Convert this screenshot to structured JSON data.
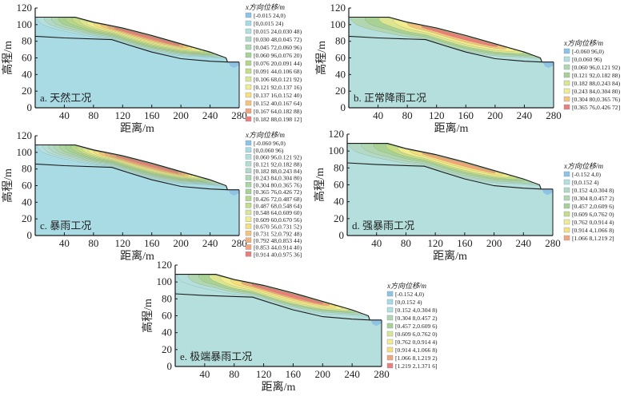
{
  "chart_data": [
    {
      "type": "contour",
      "id": "a",
      "panel_label": "a. 天然工况",
      "xlabel": "距离/m",
      "ylabel": "高程/m",
      "xlim": [
        0,
        280
      ],
      "ylim": [
        0,
        120
      ],
      "xticks": [
        40,
        80,
        120,
        160,
        200,
        240,
        280
      ],
      "yticks": [
        0,
        20,
        40,
        60,
        80,
        100,
        120
      ],
      "legend": {
        "title": "x方向位移/m",
        "entries": [
          {
            "label": "[-0.015 24,0)",
            "color": "#8ec3e3"
          },
          {
            "label": "[0,0.015 24)",
            "color": "#a9dbe5"
          },
          {
            "label": "[0.015 24,0.030 48)",
            "color": "#b4dfdc"
          },
          {
            "label": "[0.030 48,0.045 72)",
            "color": "#b3d9c4"
          },
          {
            "label": "[0.045 72,0.060 96)",
            "color": "#b2d6b0"
          },
          {
            "label": "[0.060 96,0.076 20)",
            "color": "#a9d193"
          },
          {
            "label": "[0.076 20,0.091 44)",
            "color": "#b7d68a"
          },
          {
            "label": "[0.091 44,0.106 68)",
            "color": "#c8dc86"
          },
          {
            "label": "[0.106 68,0.121 92)",
            "color": "#dde590"
          },
          {
            "label": "[0.121 92,0.137 16)",
            "color": "#f2ec8e"
          },
          {
            "label": "[0.137 16,0.152 40)",
            "color": "#f8df7c"
          },
          {
            "label": "[0.152 40,0.167 64)",
            "color": "#f7c27a"
          },
          {
            "label": "[0.167 64,0.182 88)",
            "color": "#f3a47a"
          },
          {
            "label": "[0.182 88,0.198 12]",
            "color": "#ec7e7a"
          }
        ]
      }
    },
    {
      "type": "contour",
      "id": "b",
      "panel_label": "b. 正常降雨工况",
      "xlabel": "距离/m",
      "ylabel": "高程/m",
      "xlim": [
        0,
        280
      ],
      "ylim": [
        0,
        120
      ],
      "xticks": [
        40,
        80,
        120,
        160,
        200,
        240,
        280
      ],
      "yticks": [
        0,
        20,
        40,
        60,
        80,
        100,
        120
      ],
      "legend": {
        "title": "x方向位移/m",
        "entries": [
          {
            "label": "[-0.060 96,0)",
            "color": "#8ec3e3"
          },
          {
            "label": "[0,0.060 96)",
            "color": "#b4dfdc"
          },
          {
            "label": "[0.060 96,0.121 92)",
            "color": "#b2d6b0"
          },
          {
            "label": "[0.121 92,0.182 88)",
            "color": "#a9d193"
          },
          {
            "label": "[0.182 88,0.243 84)",
            "color": "#dde590"
          },
          {
            "label": "[0.243 84,0.304 80)",
            "color": "#f2ec8e"
          },
          {
            "label": "[0.304 80,0.365 76)",
            "color": "#f7c27a"
          },
          {
            "label": "[0.365 76,0.426 72]",
            "color": "#ec7e7a"
          }
        ]
      }
    },
    {
      "type": "contour",
      "id": "c",
      "panel_label": "c. 暴雨工况",
      "xlabel": "距离/m",
      "ylabel": "高程/m",
      "xlim": [
        0,
        280
      ],
      "ylim": [
        0,
        120
      ],
      "xticks": [
        40,
        80,
        120,
        160,
        200,
        240,
        280
      ],
      "yticks": [
        0,
        20,
        40,
        60,
        80,
        100,
        120
      ],
      "legend": {
        "title": "x方向位移/m",
        "entries": [
          {
            "label": "[-0.060 96,0)",
            "color": "#8ec3e3"
          },
          {
            "label": "[0,0.060 96)",
            "color": "#a9dbe5"
          },
          {
            "label": "[0.060 96,0.121 92)",
            "color": "#b4dfdc"
          },
          {
            "label": "[0.121 92,0.182 88)",
            "color": "#b8ddd0"
          },
          {
            "label": "[0.182 88,0.243 84)",
            "color": "#b3d9c4"
          },
          {
            "label": "[0.243 84,0.304 80)",
            "color": "#b2d6b0"
          },
          {
            "label": "[0.304 80,0.365 76)",
            "color": "#acd3a0"
          },
          {
            "label": "[0.365 76,0.426 72)",
            "color": "#a9d193"
          },
          {
            "label": "[0.426 72,0.487 68)",
            "color": "#b7d68a"
          },
          {
            "label": "[0.487 68,0.548 64)",
            "color": "#c8dc86"
          },
          {
            "label": "[0.548 64,0.609 60)",
            "color": "#dde590"
          },
          {
            "label": "[0.609 60,0.670 56)",
            "color": "#f2ec8e"
          },
          {
            "label": "[0.670 56,0.731 52)",
            "color": "#f8df7c"
          },
          {
            "label": "[0.731 52,0.792 48)",
            "color": "#f7c27a"
          },
          {
            "label": "[0.792 48,0.853 44)",
            "color": "#f5b07a"
          },
          {
            "label": "[0.853 44,0.914 40)",
            "color": "#f3a47a"
          },
          {
            "label": "[0.914 40,0.975 36]",
            "color": "#ec7e7a"
          }
        ]
      }
    },
    {
      "type": "contour",
      "id": "d",
      "panel_label": "d. 强暴雨工况",
      "xlabel": "距离/m",
      "ylabel": "高程/m",
      "xlim": [
        0,
        280
      ],
      "ylim": [
        0,
        120
      ],
      "xticks": [
        40,
        80,
        120,
        160,
        200,
        240,
        280
      ],
      "yticks": [
        0,
        20,
        40,
        60,
        80,
        100,
        120
      ],
      "legend": {
        "title": "x方向位移/m",
        "entries": [
          {
            "label": "[-0.152 4,0)",
            "color": "#8ec3e3"
          },
          {
            "label": "[0,0.152 4)",
            "color": "#b4dfdc"
          },
          {
            "label": "[0.152 4,0.304 8)",
            "color": "#b3d9c4"
          },
          {
            "label": "[0.304 8,0.457 2)",
            "color": "#b2d6b0"
          },
          {
            "label": "[0.457 2,0.609 6)",
            "color": "#a9d193"
          },
          {
            "label": "[0.609 6,0.762 0)",
            "color": "#c8dc86"
          },
          {
            "label": "[0.762 0,0.914 4)",
            "color": "#f2ec8e"
          },
          {
            "label": "[0.914 4,1.066 8)",
            "color": "#f8df7c"
          },
          {
            "label": "[1.066 8,1.219 2]",
            "color": "#f3a47a"
          }
        ]
      }
    },
    {
      "type": "contour",
      "id": "e",
      "panel_label": "e. 极端暴雨工况",
      "xlabel": "距离/m",
      "ylabel": "高程/m",
      "xlim": [
        0,
        280
      ],
      "ylim": [
        0,
        120
      ],
      "xticks": [
        40,
        80,
        120,
        160,
        200,
        240,
        280
      ],
      "yticks": [
        0,
        20,
        40,
        60,
        80,
        100,
        120
      ],
      "legend": {
        "title": "x方向位移/m",
        "entries": [
          {
            "label": "[-0.152 4,0)",
            "color": "#8ec3e3"
          },
          {
            "label": "[0,0.152 4)",
            "color": "#a9dbe5"
          },
          {
            "label": "[0.152 4,0.304 8)",
            "color": "#b4dfdc"
          },
          {
            "label": "[0.304 8,0.457 2)",
            "color": "#b2d6b0"
          },
          {
            "label": "[0.457 2,0.609 6)",
            "color": "#a9d193"
          },
          {
            "label": "[0.609 6,0.762 0)",
            "color": "#dde590"
          },
          {
            "label": "[0.762 0,0.914 4)",
            "color": "#f2ec8e"
          },
          {
            "label": "[0.914 4,1.066 8)",
            "color": "#f8df7c"
          },
          {
            "label": "[1.066 8,1.219 2)",
            "color": "#f3a47a"
          },
          {
            "label": "[1.219 2,1.371 6]",
            "color": "#ec7e7a"
          }
        ]
      }
    }
  ],
  "geometry": {
    "ground_surface": [
      [
        0,
        109
      ],
      [
        55,
        109
      ],
      [
        80,
        103
      ],
      [
        120,
        96
      ],
      [
        160,
        87
      ],
      [
        200,
        77
      ],
      [
        240,
        67
      ],
      [
        262,
        60
      ],
      [
        264,
        55
      ],
      [
        280,
        55
      ]
    ],
    "slip_surface": [
      [
        0,
        86
      ],
      [
        40,
        84
      ],
      [
        105,
        82
      ],
      [
        130,
        75
      ],
      [
        160,
        67
      ],
      [
        200,
        59
      ],
      [
        240,
        56
      ],
      [
        264,
        55
      ]
    ],
    "water_pocket": [
      [
        265,
        55
      ],
      [
        280,
        55
      ],
      [
        280,
        51
      ],
      [
        273,
        48
      ],
      [
        268,
        50
      ]
    ]
  }
}
